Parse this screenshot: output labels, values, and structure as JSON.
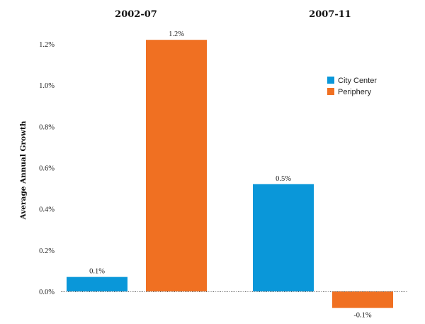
{
  "chart_data": {
    "type": "bar",
    "ylabel": "Average Annual Growth",
    "ylim": [
      -0.001,
      0.0125
    ],
    "yticks": [
      "0.0%",
      "0.2%",
      "0.4%",
      "0.6%",
      "0.8%",
      "1.0%",
      "1.2%"
    ],
    "yticks_values": [
      0.0,
      0.002,
      0.004,
      0.006,
      0.008,
      0.01,
      0.012
    ],
    "groups": [
      "2002-07",
      "2007-11"
    ],
    "series": [
      {
        "name": "City Center",
        "color": "#0a97d9",
        "values": [
          0.0007,
          0.0052
        ],
        "labels": [
          "0.1%",
          "0.5%"
        ]
      },
      {
        "name": "Periphery",
        "color": "#f07022",
        "values": [
          0.0122,
          -0.0008
        ],
        "labels": [
          "1.2%",
          "-0.1%"
        ]
      }
    ],
    "legend_position": "top-right",
    "grid": false
  }
}
